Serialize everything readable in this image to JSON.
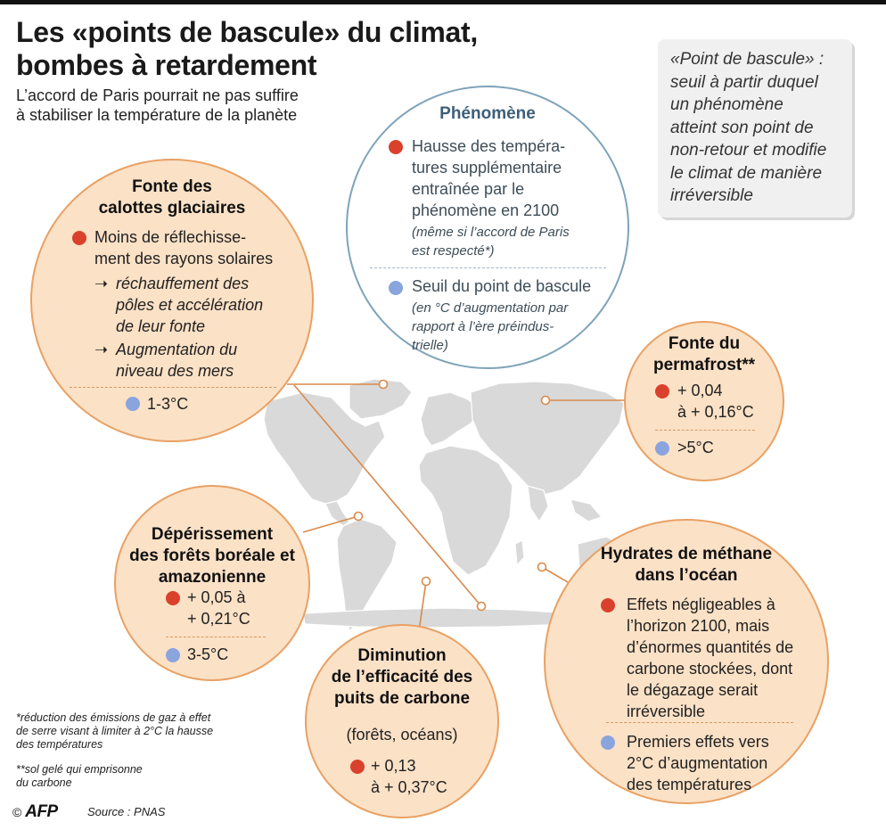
{
  "header": {
    "title_line1": "Les «points de bascule» du climat,",
    "title_line2": "bombes à retardement",
    "subtitle_line1": "L’accord de Paris pourrait ne pas suffire",
    "subtitle_line2": "à stabiliser la température de la planète"
  },
  "definition": {
    "lines": [
      "«Point de bascule» :",
      "seuil à partir duquel",
      "un phénomène",
      "atteint son point de",
      "non-retour et modifie",
      "le climat de manière",
      "irréversible"
    ]
  },
  "legend": {
    "title": "Phénomène",
    "red_lines": [
      "Hausse des tempéra-",
      "tures supplémentaire",
      "entraînée par le",
      "phénomène en 2100"
    ],
    "red_note_lines": [
      "(même si l’accord de Paris",
      "est respecté*)"
    ],
    "blue_lines": [
      "Seuil du point de bascule"
    ],
    "blue_note_lines": [
      "(en °C d’augmentation par",
      "rapport à l’ère préindus-",
      "trielle)"
    ]
  },
  "ice": {
    "title_lines": [
      "Fonte des",
      "calottes glaciaires"
    ],
    "red_lines": [
      "Moins de réflechisse-",
      "ment des rayons solaires"
    ],
    "consequence1_lines": [
      "réchauffement des",
      "pôles et accélération",
      "de leur fonte"
    ],
    "consequence2_lines": [
      "Augmentation du",
      "niveau des mers"
    ],
    "arrow": "➝",
    "threshold": "1-3°C"
  },
  "permafrost": {
    "title_lines": [
      "Fonte du",
      "permafrost**"
    ],
    "red_lines": [
      "+ 0,04",
      "à + 0,16°C"
    ],
    "threshold": ">5°C"
  },
  "forest": {
    "title_lines": [
      "Dépérissement",
      "des forêts boréale et",
      "amazonienne"
    ],
    "red_lines": [
      "+ 0,05 à",
      "+ 0,21°C"
    ],
    "threshold": "3-5°C"
  },
  "carbon": {
    "title_lines": [
      "Diminution",
      "de l’efficacité des",
      "puits de carbone"
    ],
    "subtitle": "(forêts, océans)",
    "red_lines": [
      "+ 0,13",
      "à + 0,37°C"
    ]
  },
  "methane": {
    "title_lines": [
      "Hydrates de méthane",
      "dans l’océan"
    ],
    "red_lines": [
      "Effets négligeables à",
      "l’horizon 2100, mais",
      "d’énormes quantités de",
      "carbone stockées, dont",
      "le dégazage serait",
      "irréversible"
    ],
    "blue_lines": [
      "Premiers effets vers",
      "2°C d’augmentation",
      "des températures"
    ]
  },
  "notes": {
    "note1_lines": [
      "*réduction des émissions de gaz à effet",
      "de serre visant à limiter à 2°C la hausse",
      "des températures"
    ],
    "note2_lines": [
      "**sol gelé qui emprisonne",
      "du carbone"
    ]
  },
  "footer": {
    "copyright": "©",
    "logo": "AFP",
    "source": "Source : PNAS"
  },
  "colors": {
    "bubble_fill": "#fbe1c6",
    "bubble_border": "#e8a164",
    "red_dot": "#d9412c",
    "blue_dot": "#8aa4dd",
    "legend_border": "#7ea3ba",
    "map_land": "#d9d9d9"
  }
}
